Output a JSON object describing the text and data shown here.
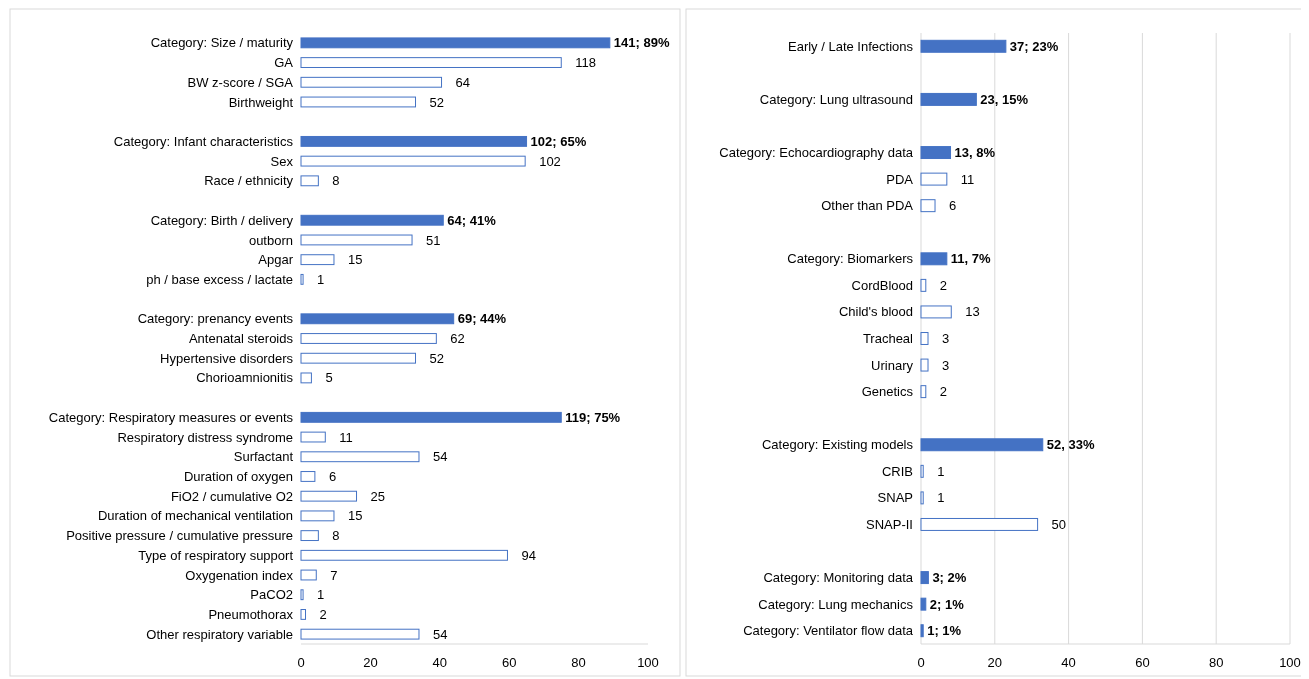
{
  "chart_data": [
    {
      "type": "bar",
      "orientation": "horizontal",
      "stacked": true,
      "grid": false,
      "categories": [
        "Category: Size / maturity",
        "GA",
        "BW z-score / SGA",
        "Birthweight",
        null,
        "Category: Infant characteristics",
        "Sex",
        "Race / ethnicity",
        null,
        "Category: Birth / delivery",
        "outborn",
        "Apgar",
        "ph / base excess / lactate",
        null,
        "Category: prenancy events",
        "Antenatal steroids",
        "Hypertensive disorders",
        "Chorioamnionitis",
        null,
        "Category: Respiratory measures or events",
        "Respiratory distress syndrome",
        "Surfactant",
        "Duration of oxygen",
        "FiO2 / cumulative O2",
        "Duration of mechanical ventilation",
        "Positive pressure / cumulative pressure",
        "Type of respiratory support",
        "Oxygenation index",
        "PaCO2",
        "Pneumothorax",
        "Other respiratory variable"
      ],
      "series": [
        {
          "color": "#4472c4",
          "values": [
            89,
            null,
            null,
            null,
            null,
            65,
            null,
            null,
            null,
            41,
            null,
            null,
            null,
            null,
            44,
            null,
            null,
            null,
            null,
            75,
            null,
            null,
            null,
            null,
            null,
            null,
            null,
            null,
            null,
            null,
            null
          ],
          "value_labels": [
            "141; 89%",
            null,
            null,
            null,
            null,
            "102; 65%",
            null,
            null,
            null,
            "64; 41%",
            null,
            null,
            null,
            null,
            "69; 44%",
            null,
            null,
            null,
            null,
            "119; 75%",
            null,
            null,
            null,
            null,
            null,
            null,
            null,
            null,
            null,
            null,
            null
          ]
        },
        {
          "color": "#4472c4",
          "values": [
            null,
            75,
            40.5,
            33,
            null,
            null,
            64.6,
            5,
            null,
            null,
            32,
            9.5,
            0.6,
            null,
            null,
            39,
            33,
            3,
            null,
            null,
            7,
            34,
            4,
            16,
            9.5,
            5,
            59.5,
            4.4,
            0.6,
            1.3,
            34
          ]
        }
      ],
      "annotations": [
        {
          "text": "118",
          "x": 75,
          "y": "GA"
        },
        {
          "text": "64",
          "x": 40.5,
          "y": "BW z-score / SGA"
        },
        {
          "text": "52",
          "x": 33,
          "y": "Birthweight"
        },
        {
          "text": "102",
          "x": 64.6,
          "y": "Sex"
        },
        {
          "text": "8",
          "x": 5,
          "y": "Race / ethnicity"
        },
        {
          "text": "51",
          "x": 32,
          "y": "outborn"
        },
        {
          "text": "15",
          "x": 9.5,
          "y": "Apgar"
        },
        {
          "text": "1",
          "x": 0.6,
          "y": "ph / base excess / lactate"
        },
        {
          "text": "62",
          "x": 39,
          "y": "Antenatal steroids"
        },
        {
          "text": "52",
          "x": 33,
          "y": "Hypertensive disorders"
        },
        {
          "text": "5",
          "x": 3,
          "y": "Chorioamnionitis"
        },
        {
          "text": "11",
          "x": 7,
          "y": "Respiratory distress syndrome"
        },
        {
          "text": "54",
          "x": 34,
          "y": "Surfactant"
        },
        {
          "text": "6",
          "x": 4,
          "y": "Duration of oxygen"
        },
        {
          "text": "25",
          "x": 16,
          "y": "FiO2 / cumulative O2"
        },
        {
          "text": "15",
          "x": 9.5,
          "y": "Duration of mechanical ventilation"
        },
        {
          "text": "8",
          "x": 5,
          "y": "Positive pressure / cumulative pressure"
        },
        {
          "text": "94",
          "x": 59.5,
          "y": "Type of respiratory support"
        },
        {
          "text": "7",
          "x": 4.4,
          "y": "Oxygenation index"
        },
        {
          "text": "1",
          "x": 0.6,
          "y": "PaCO2"
        },
        {
          "text": "2",
          "x": 1.3,
          "y": "Pneumothorax"
        },
        {
          "text": "54",
          "x": 34,
          "y": "Other respiratory variable"
        }
      ],
      "xlim": [
        0,
        100
      ],
      "xticks": [
        0,
        20,
        40,
        60,
        80,
        100
      ]
    },
    {
      "type": "bar",
      "orientation": "horizontal",
      "stacked": true,
      "grid": "x",
      "categories": [
        "Early / Late Infections",
        null,
        "Category: Lung ultrasound",
        null,
        "Category: Echocardiography data",
        "PDA",
        "Other than PDA",
        null,
        "Category: Biomarkers",
        "CordBlood",
        "Child's blood",
        "Tracheal",
        "Urinary",
        "Genetics",
        null,
        "Category: Existing models",
        "CRIB",
        "SNAP",
        "SNAP-II",
        null,
        "Category: Monitoring data",
        "Category: Lung mechanics",
        "Category: Ventilator flow data"
      ],
      "series": [
        {
          "color": "#4472c4",
          "values": [
            23,
            null,
            15,
            null,
            8,
            null,
            null,
            null,
            7,
            null,
            null,
            null,
            null,
            null,
            null,
            33,
            null,
            null,
            null,
            null,
            2,
            1.3,
            0.6
          ],
          "value_labels": [
            "37; 23%",
            null,
            "23, 15%",
            null,
            "13, 8%",
            null,
            null,
            null,
            "11, 7%",
            null,
            null,
            null,
            null,
            null,
            null,
            "52, 33%",
            null,
            null,
            null,
            null,
            "3; 2%",
            "2; 1%",
            "1; 1%"
          ]
        },
        {
          "color": "#4472c4",
          "values": [
            null,
            null,
            null,
            null,
            null,
            7,
            3.8,
            null,
            null,
            1.3,
            8.2,
            1.9,
            1.9,
            1.3,
            null,
            null,
            0.6,
            0.6,
            31.6,
            null,
            null,
            null,
            null
          ]
        }
      ],
      "annotations": [
        {
          "text": "11",
          "x": 7,
          "y": "PDA"
        },
        {
          "text": "6",
          "x": 3.8,
          "y": "Other than PDA"
        },
        {
          "text": "2",
          "x": 1.3,
          "y": "CordBlood"
        },
        {
          "text": "13",
          "x": 8.2,
          "y": "Child's blood"
        },
        {
          "text": "3",
          "x": 1.9,
          "y": "Tracheal"
        },
        {
          "text": "3",
          "x": 1.9,
          "y": "Urinary"
        },
        {
          "text": "2",
          "x": 1.3,
          "y": "Genetics"
        },
        {
          "text": "1",
          "x": 0.6,
          "y": "CRIB"
        },
        {
          "text": "1",
          "x": 0.6,
          "y": "SNAP"
        },
        {
          "text": "50",
          "x": 31.6,
          "y": "SNAP-II"
        }
      ],
      "xlim": [
        0,
        100
      ],
      "xticks": [
        0,
        20,
        40,
        60,
        80,
        100
      ]
    }
  ]
}
